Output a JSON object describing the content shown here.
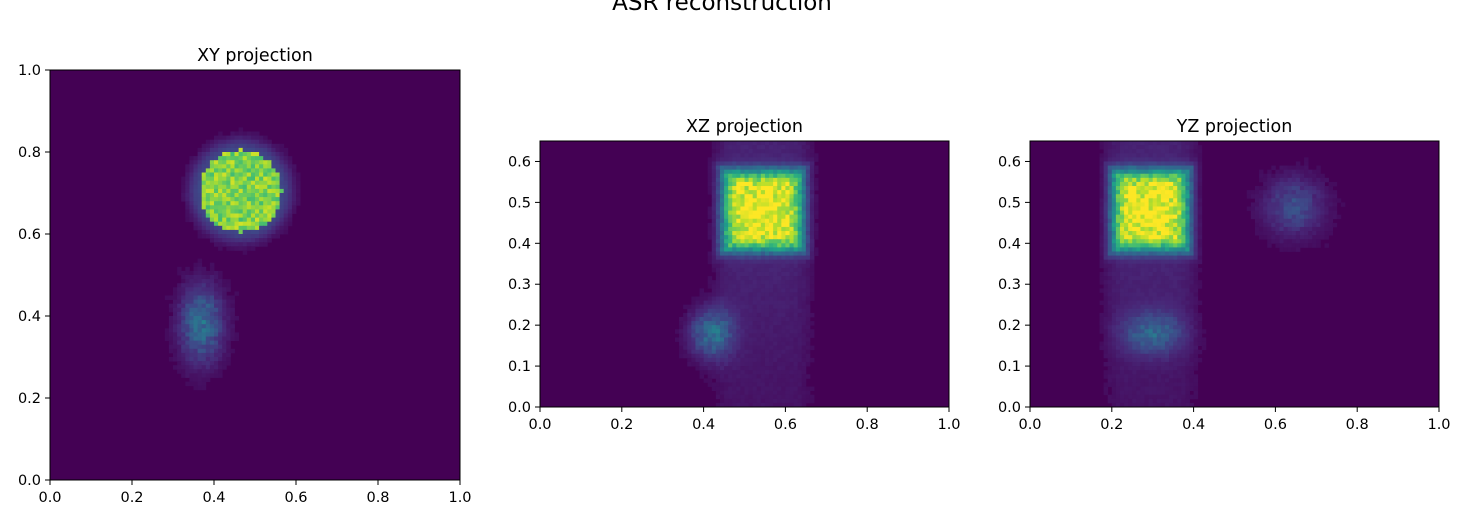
{
  "figure": {
    "suptitle": "ASR reconstruction",
    "colormap": "viridis",
    "background": "#ffffff",
    "colormap_low": "#440154",
    "colormap_high": "#fde725"
  },
  "chart_data": [
    {
      "type": "heatmap",
      "title": "XY projection",
      "xlabel": "",
      "ylabel": "",
      "xlim": [
        0.0,
        1.0
      ],
      "ylim": [
        0.0,
        1.0
      ],
      "xticks": [
        0.0,
        0.2,
        0.4,
        0.6,
        0.8,
        1.0
      ],
      "yticks": [
        0.0,
        0.2,
        0.4,
        0.6,
        0.8,
        1.0
      ],
      "xtick_labels": [
        "0.0",
        "0.2",
        "0.4",
        "0.6",
        "0.8",
        "1.0"
      ],
      "ytick_labels": [
        "0.0",
        "0.2",
        "0.4",
        "0.6",
        "0.8",
        "1.0"
      ],
      "grid": false,
      "features": [
        {
          "shape": "disc",
          "center": [
            0.465,
            0.705
          ],
          "radius": 0.1,
          "intensity": 0.8
        },
        {
          "shape": "blob",
          "center": [
            0.37,
            0.38
          ],
          "width": 0.1,
          "height": 0.18,
          "intensity": 0.35
        }
      ]
    },
    {
      "type": "heatmap",
      "title": "XZ projection",
      "xlabel": "",
      "ylabel": "",
      "xlim": [
        0.0,
        1.0
      ],
      "ylim": [
        0.0,
        0.65
      ],
      "xticks": [
        0.0,
        0.2,
        0.4,
        0.6,
        0.8,
        1.0
      ],
      "yticks": [
        0.0,
        0.1,
        0.2,
        0.3,
        0.4,
        0.5,
        0.6
      ],
      "xtick_labels": [
        "0.0",
        "0.2",
        "0.4",
        "0.6",
        "0.8",
        "1.0"
      ],
      "ytick_labels": [
        "0.0",
        "0.1",
        "0.2",
        "0.3",
        "0.4",
        "0.5",
        "0.6"
      ],
      "grid": false,
      "features": [
        {
          "shape": "block",
          "center": [
            0.545,
            0.48
          ],
          "width": 0.2,
          "height": 0.18,
          "intensity": 0.9
        },
        {
          "shape": "blob",
          "center": [
            0.42,
            0.18
          ],
          "width": 0.1,
          "height": 0.12,
          "intensity": 0.35
        }
      ]
    },
    {
      "type": "heatmap",
      "title": "YZ projection",
      "xlabel": "",
      "ylabel": "",
      "xlim": [
        0.0,
        1.0
      ],
      "ylim": [
        0.0,
        0.65
      ],
      "xticks": [
        0.0,
        0.2,
        0.4,
        0.6,
        0.8,
        1.0
      ],
      "yticks": [
        0.0,
        0.1,
        0.2,
        0.3,
        0.4,
        0.5,
        0.6
      ],
      "xtick_labels": [
        "0.0",
        "0.2",
        "0.4",
        "0.6",
        "0.8",
        "1.0"
      ],
      "ytick_labels": [
        "0.0",
        "0.1",
        "0.2",
        "0.3",
        "0.4",
        "0.5",
        "0.6"
      ],
      "grid": false,
      "features": [
        {
          "shape": "block",
          "center": [
            0.295,
            0.48
          ],
          "width": 0.19,
          "height": 0.18,
          "intensity": 0.9
        },
        {
          "shape": "blob",
          "center": [
            0.645,
            0.49
          ],
          "width": 0.14,
          "height": 0.14,
          "intensity": 0.22
        },
        {
          "shape": "blob",
          "center": [
            0.3,
            0.18
          ],
          "width": 0.14,
          "height": 0.1,
          "intensity": 0.28
        }
      ]
    }
  ]
}
